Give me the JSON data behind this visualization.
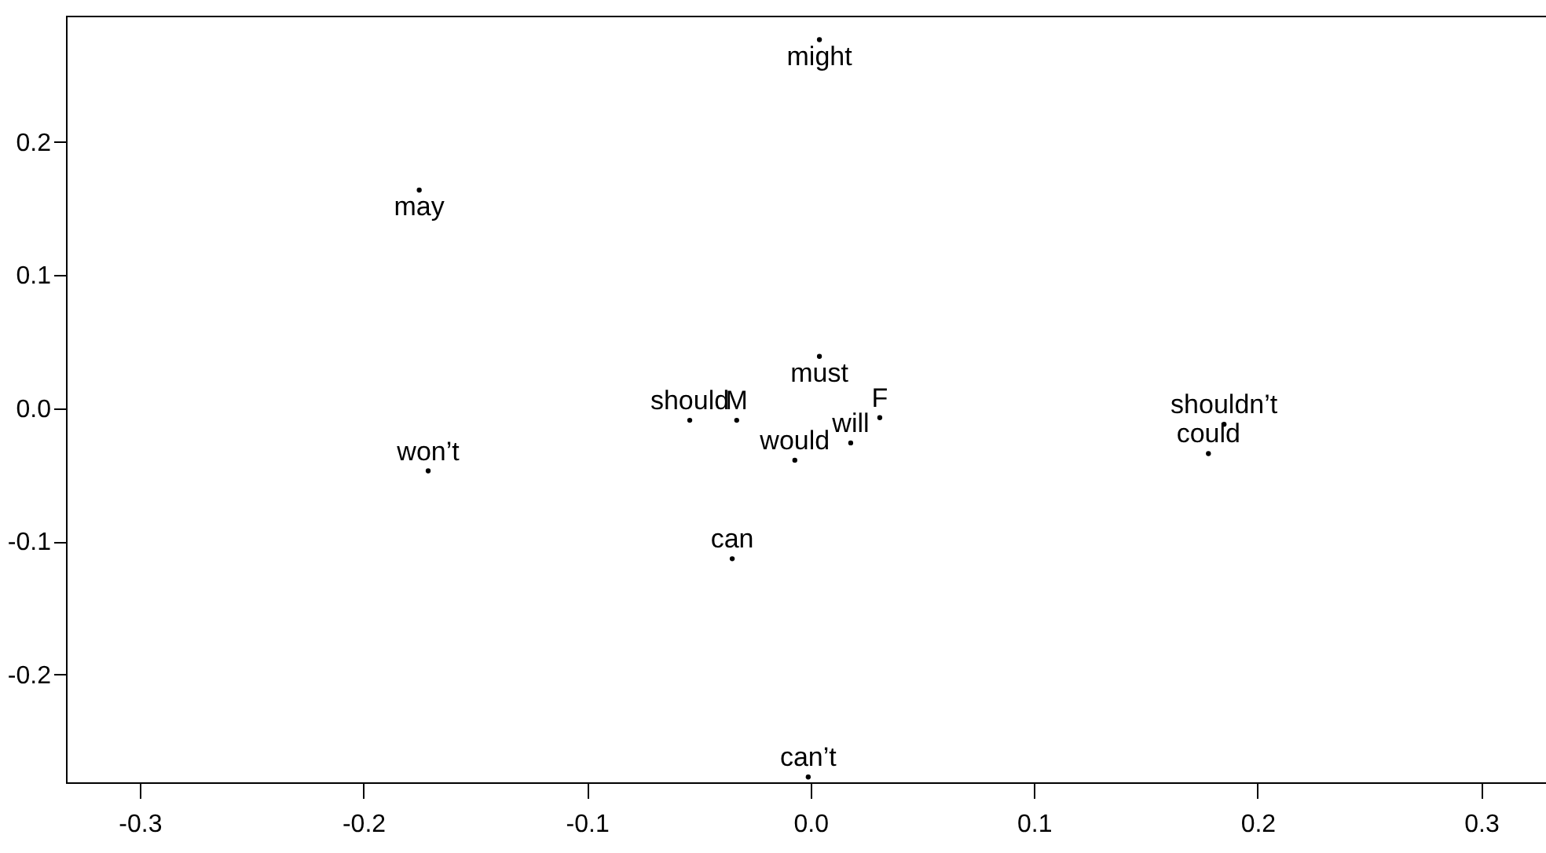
{
  "chart_data": {
    "type": "scatter",
    "xlim": [
      -0.333,
      0.329
    ],
    "ylim": [
      -0.281,
      0.295
    ],
    "xticks": [
      {
        "value": -0.3,
        "label": "-0.3"
      },
      {
        "value": -0.2,
        "label": "-0.2"
      },
      {
        "value": -0.1,
        "label": "-0.1"
      },
      {
        "value": 0,
        "label": "0.0"
      },
      {
        "value": 0.1,
        "label": "0.1"
      },
      {
        "value": 0.2,
        "label": "0.2"
      },
      {
        "value": 0.3,
        "label": "0.3"
      }
    ],
    "yticks": [
      {
        "value": -0.2,
        "label": "-0.2"
      },
      {
        "value": -0.1,
        "label": "-0.1"
      },
      {
        "value": 0,
        "label": "0.0"
      },
      {
        "value": 0.1,
        "label": "0.1"
      },
      {
        "value": 0.2,
        "label": "0.2"
      }
    ],
    "grid": false,
    "marker": "circle",
    "series": [
      {
        "name": "might",
        "color": "#000000",
        "x": [
          0.004
        ],
        "values": [
          0.277
        ]
      },
      {
        "name": "may",
        "color": "#000000",
        "x": [
          -0.175
        ],
        "values": [
          0.164
        ]
      },
      {
        "name": "must",
        "color": "#000000",
        "x": [
          0.004
        ],
        "values": [
          0.039
        ]
      },
      {
        "name": "should",
        "color": "#000000",
        "x": [
          -0.054
        ],
        "values": [
          -0.009
        ]
      },
      {
        "name": "M",
        "color": "#000000",
        "x": [
          -0.033
        ],
        "values": [
          -0.009
        ]
      },
      {
        "name": "F",
        "color": "#000000",
        "x": [
          0.031
        ],
        "values": [
          -0.007
        ]
      },
      {
        "name": "will",
        "color": "#000000",
        "x": [
          0.018
        ],
        "values": [
          -0.026
        ]
      },
      {
        "name": "would",
        "color": "#000000",
        "x": [
          -0.007
        ],
        "values": [
          -0.039
        ]
      },
      {
        "name": "shouldn’t",
        "color": "#000000",
        "x": [
          0.185
        ],
        "values": [
          -0.012
        ]
      },
      {
        "name": "could",
        "color": "#000000",
        "x": [
          0.178
        ],
        "values": [
          -0.034
        ]
      },
      {
        "name": "won’t",
        "color": "#000000",
        "x": [
          -0.171
        ],
        "values": [
          -0.047
        ]
      },
      {
        "name": "can",
        "color": "#000000",
        "x": [
          -0.035
        ],
        "values": [
          -0.113
        ]
      },
      {
        "name": "can’t",
        "color": "#000000",
        "x": [
          -0.001
        ],
        "values": [
          -0.277
        ]
      }
    ]
  }
}
